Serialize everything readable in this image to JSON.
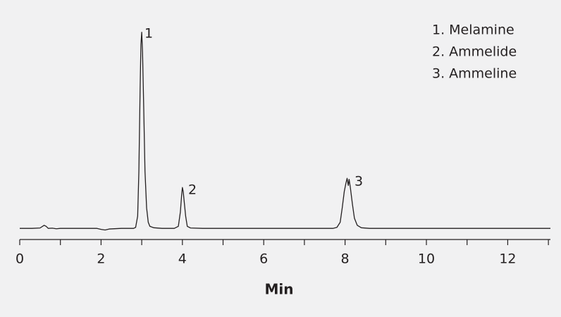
{
  "chart_data": {
    "type": "line",
    "x_label": "Min",
    "x": [
      0.0,
      0.3,
      0.5,
      0.6,
      0.65,
      0.7,
      0.8,
      0.9,
      1.0,
      1.5,
      1.9,
      2.0,
      2.1,
      2.2,
      2.5,
      2.8,
      2.85,
      2.9,
      2.93,
      2.96,
      2.98,
      3.0,
      3.02,
      3.05,
      3.08,
      3.12,
      3.16,
      3.2,
      3.3,
      3.5,
      3.8,
      3.9,
      3.95,
      3.98,
      4.0,
      4.02,
      4.05,
      4.08,
      4.12,
      4.2,
      4.5,
      5.0,
      6.0,
      7.0,
      7.7,
      7.8,
      7.88,
      7.93,
      7.98,
      8.02,
      8.05,
      8.08,
      8.1,
      8.13,
      8.18,
      8.23,
      8.3,
      8.4,
      8.6,
      9.0,
      10.0,
      11.0,
      12.0,
      13.05
    ],
    "values": [
      2,
      2,
      2.2,
      3.5,
      3,
      2,
      2.1,
      1.8,
      2,
      2,
      2,
      1.5,
      1.2,
      1.7,
      2,
      2,
      2.5,
      8,
      30,
      70,
      92,
      98,
      88,
      60,
      30,
      12,
      5,
      3,
      2.3,
      2,
      2,
      3,
      10,
      18,
      22,
      20,
      14,
      8,
      3,
      2.2,
      2,
      2,
      2,
      2,
      2,
      2.5,
      5,
      12,
      20,
      24,
      26.5,
      23,
      26,
      22,
      14,
      7,
      3.5,
      2.3,
      2,
      2,
      2,
      2,
      2,
      2
    ],
    "color": "#231f20",
    "xlim": [
      0,
      13.05
    ],
    "ylim": [
      0,
      100
    ],
    "xticks": [
      0,
      2,
      4,
      6,
      8,
      10,
      12
    ],
    "xminorticks": [
      1,
      3,
      5,
      7,
      9,
      11,
      13
    ],
    "peak_labels": [
      "1",
      "2",
      "3"
    ],
    "legend": [
      "1. Melamine",
      "2. Ammelide",
      "3. Ammeline"
    ]
  }
}
